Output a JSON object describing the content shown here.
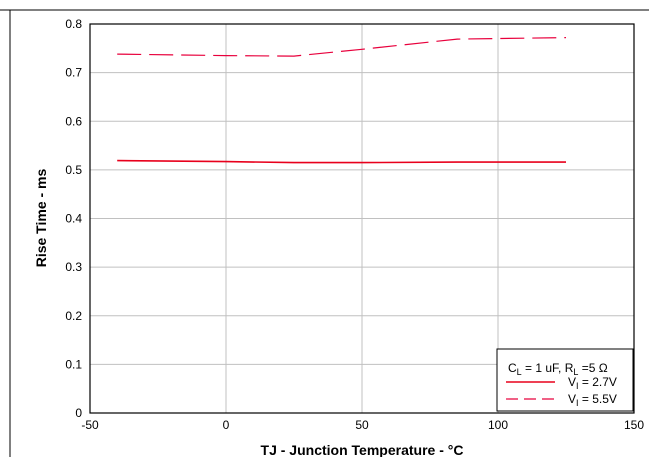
{
  "chart_data": {
    "type": "line",
    "xlabel": "TJ - Junction Temperature - °C",
    "ylabel": "Rise Time - ms",
    "xlim": [
      -50,
      150
    ],
    "ylim": [
      0,
      0.8
    ],
    "x_ticks": [
      "-50",
      "0",
      "50",
      "100",
      "150"
    ],
    "y_ticks": [
      "0",
      "0.1",
      "0.2",
      "0.3",
      "0.4",
      "0.5",
      "0.6",
      "0.7",
      "0.8"
    ],
    "grid": true,
    "legend_position": "bottom-right",
    "legend_title": {
      "c_main": "C",
      "c_sub": "L",
      "c_rest": " = 1 uF, R",
      "r_sub": "L",
      "r_rest": " =5 Ω"
    },
    "series": [
      {
        "legend_main": "V",
        "legend_sub": "I",
        "legend_rest": " = 2.7V",
        "color": "#e8001c",
        "style": "solid",
        "x": [
          -40,
          0,
          25,
          50,
          85,
          125
        ],
        "y": [
          0.519,
          0.517,
          0.515,
          0.515,
          0.516,
          0.516
        ]
      },
      {
        "legend_main": "V",
        "legend_sub": "I",
        "legend_rest": " = 5.5V",
        "color": "#e8003c",
        "style": "dashed",
        "x": [
          -40,
          0,
          25,
          50,
          85,
          125
        ],
        "y": [
          0.738,
          0.735,
          0.734,
          0.748,
          0.769,
          0.772
        ]
      }
    ]
  }
}
